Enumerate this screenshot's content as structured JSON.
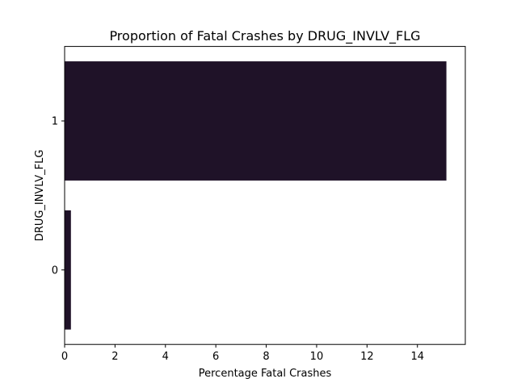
{
  "chart_data": {
    "type": "bar",
    "orientation": "horizontal",
    "title": "Proportion of Fatal Crashes by DRUG_INVLV_FLG",
    "xlabel": "Percentage Fatal Crashes",
    "ylabel": "DRUG_INVLV_FLG",
    "categories": [
      "0",
      "1"
    ],
    "values": [
      0.25,
      15.15
    ],
    "xlim": [
      0,
      15.9
    ],
    "xticks": [
      0,
      2,
      4,
      6,
      8,
      10,
      12,
      14
    ],
    "grid": false,
    "legend": "none",
    "bar_color": "#1f1228"
  }
}
